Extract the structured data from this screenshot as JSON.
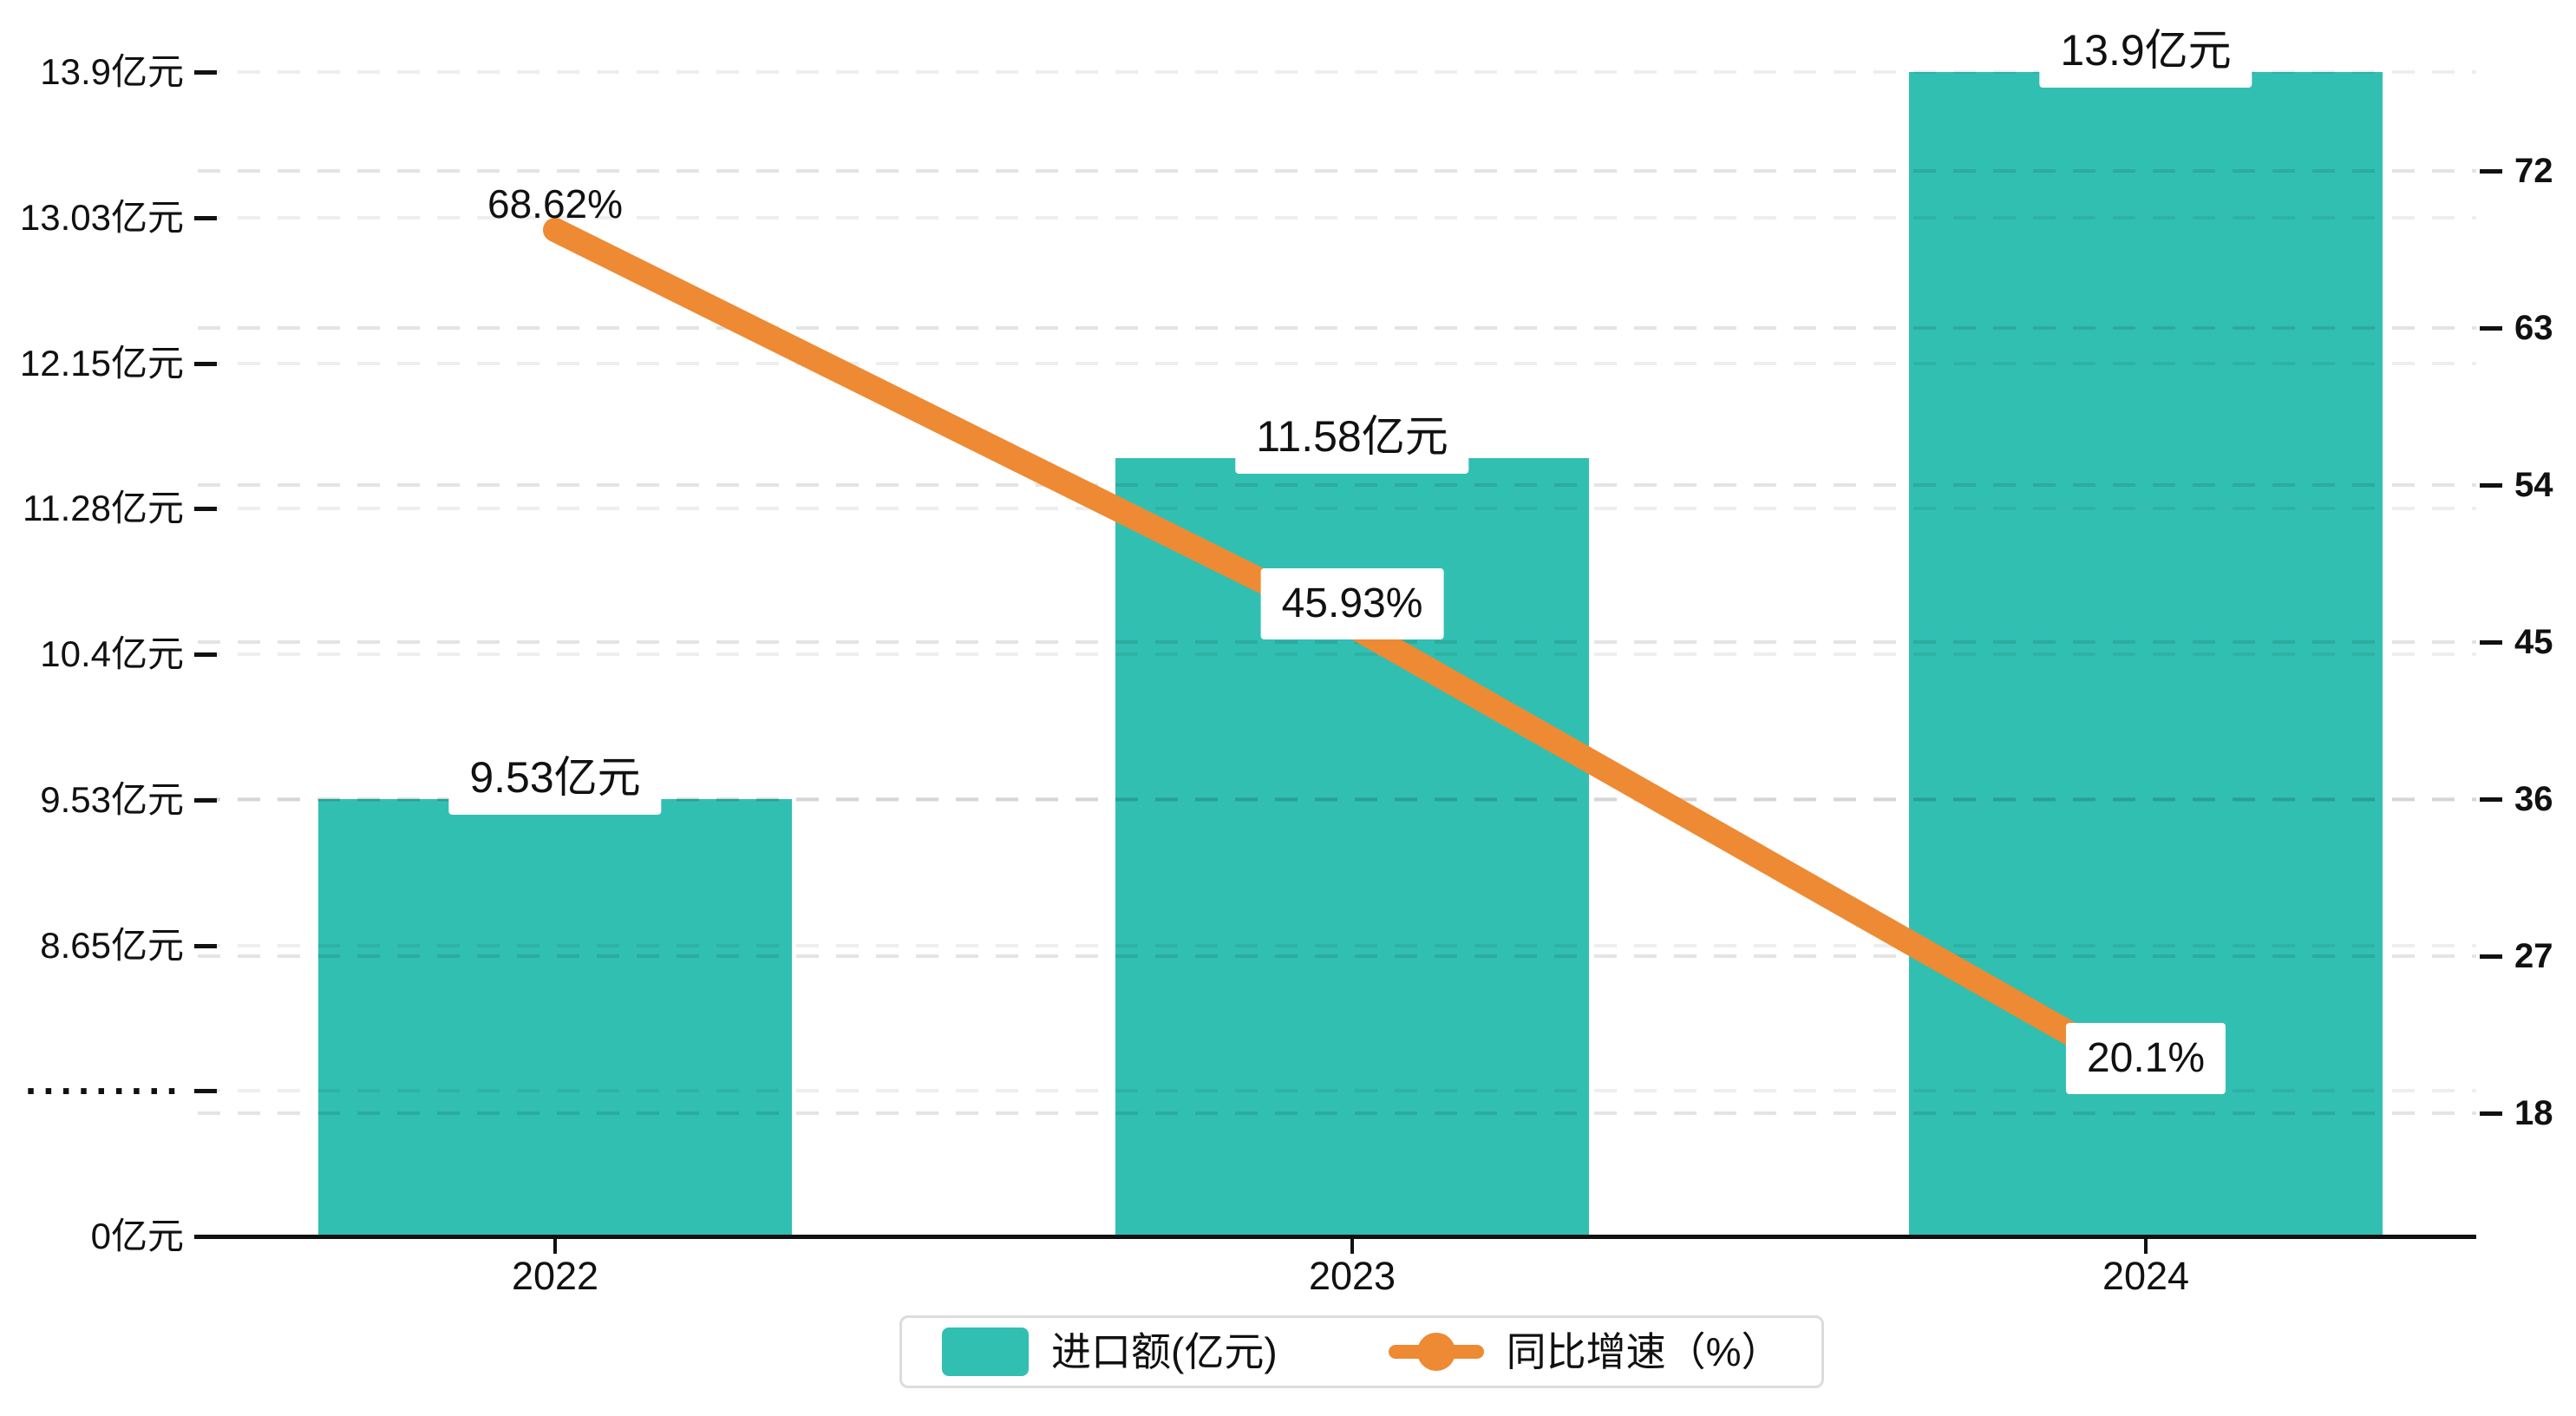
{
  "chart_data": {
    "type": "bar+line",
    "categories": [
      "2022",
      "2023",
      "2024"
    ],
    "series": [
      {
        "name": "进口额(亿元)",
        "type": "bar",
        "values": [
          9.53,
          11.58,
          13.9
        ],
        "labels": [
          "9.53亿元",
          "11.58亿元",
          "13.9亿元"
        ],
        "axis": "left"
      },
      {
        "name": "同比增速（%）",
        "type": "line",
        "values": [
          68.62,
          45.93,
          20.1
        ],
        "labels": [
          "68.62%",
          "45.93%",
          "20.1%"
        ],
        "axis": "right"
      }
    ],
    "left_axis": {
      "tick_labels": [
        "0亿元",
        "·········",
        "8.65亿元",
        "9.53亿元",
        "10.4亿元",
        "11.28亿元",
        "12.15亿元",
        "13.03亿元",
        "13.9亿元"
      ],
      "axis_break": true,
      "break_start_value": 8.65,
      "tick_step_value": 0.875,
      "baseline_value": 0
    },
    "right_axis": {
      "tick_labels": [
        "72",
        "63",
        "54",
        "45",
        "36",
        "27",
        "18"
      ],
      "min": 18,
      "max": 72,
      "step": 9
    },
    "legend": [
      {
        "label": "进口额(亿元)",
        "type": "bar"
      },
      {
        "label": "同比增速（%）",
        "type": "line"
      }
    ],
    "grid": true,
    "legend_position": "bottom",
    "colors": {
      "bar": "#31bfb2",
      "line": "#ed8a33",
      "axis": "#111111",
      "text": "#111111",
      "grid_left": "rgba(0,0,0,0.065)",
      "grid_right": "rgba(0,0,0,0.105)",
      "label_box": "#ffffff",
      "legend_border": "#dcdcdc"
    }
  }
}
